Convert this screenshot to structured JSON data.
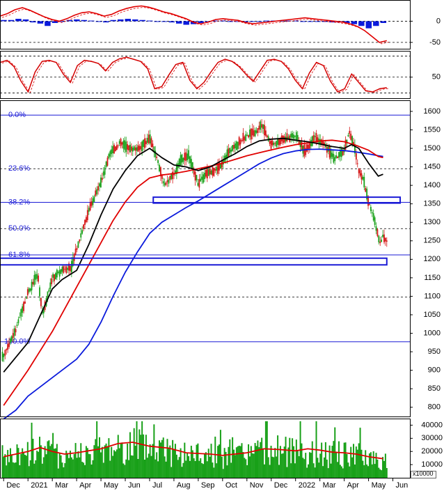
{
  "colors": {
    "price_up": "#18a018",
    "price_down": "#d41414",
    "ma_short": "#000000",
    "ma_mid": "#e00000",
    "ma_long": "#0a1adc",
    "fib": "#1a1ad6",
    "volume": "#18a018",
    "volume_ma": "#e00000",
    "macd_line": "#e00000",
    "macd_hist": "#0a1adc",
    "stoch": "#d40000"
  },
  "chart_data": [
    {
      "type": "line",
      "panel": "macd",
      "y_ticks": [
        "0",
        "-50"
      ],
      "y_tick_values": [
        0,
        -50
      ],
      "ylim": [
        -65,
        50
      ],
      "grid": true,
      "series_line": [
        12,
        18,
        27,
        32,
        26,
        18,
        10,
        4,
        0,
        6,
        14,
        20,
        22,
        18,
        12,
        16,
        24,
        30,
        34,
        36,
        33,
        28,
        22,
        18,
        12,
        6,
        -2,
        -6,
        -2,
        4,
        6,
        4,
        2,
        -3,
        -6,
        -4,
        -2,
        0,
        2,
        4,
        6,
        8,
        6,
        4,
        2,
        0,
        -2,
        -6,
        -12,
        -22,
        -36,
        -50,
        -46
      ],
      "series_hist": [
        2,
        2,
        4,
        3,
        -2,
        -4,
        -8,
        -3,
        -1,
        2,
        3,
        2,
        1,
        -1,
        -2,
        2,
        3,
        4,
        3,
        2,
        1,
        0,
        -1,
        -2,
        -4,
        -6,
        -5,
        -3,
        -1,
        1,
        1,
        0,
        -1,
        -2,
        -1,
        0,
        1,
        1,
        1,
        1,
        1,
        0,
        -1,
        -1,
        -1,
        -2,
        -2,
        -3,
        -5,
        -8,
        -12,
        -8,
        -3
      ]
    },
    {
      "type": "line",
      "panel": "stochastic",
      "y_ticks": [
        "50"
      ],
      "y_tick_values": [
        50
      ],
      "ylim": [
        10,
        100
      ],
      "grid": true,
      "series": [
        78,
        82,
        70,
        42,
        22,
        60,
        80,
        82,
        78,
        56,
        40,
        72,
        82,
        80,
        76,
        62,
        78,
        85,
        88,
        84,
        80,
        66,
        28,
        32,
        54,
        74,
        78,
        44,
        28,
        40,
        60,
        78,
        84,
        80,
        70,
        55,
        42,
        62,
        82,
        84,
        80,
        66,
        44,
        28,
        58,
        78,
        72,
        42,
        22,
        28,
        56,
        40,
        24,
        22,
        28,
        30
      ]
    },
    {
      "type": "candlestick",
      "panel": "price",
      "x_ticks": [
        "Dec",
        "2021",
        "Mar",
        "Apr",
        "May",
        "Jun",
        "Jul",
        "Aug",
        "Sep",
        "Oct",
        "Nov",
        "Dec",
        "2022",
        "Mar",
        "Apr",
        "May",
        "Jun"
      ],
      "x_tick_values": [
        0,
        1,
        2,
        3,
        4,
        5,
        6,
        7,
        8,
        9,
        10,
        11,
        12,
        13,
        14,
        15,
        16
      ],
      "xlim": [
        -0.15,
        16.7
      ],
      "y_ticks": [
        "1600",
        "1550",
        "1500",
        "1450",
        "1400",
        "1350",
        "1300",
        "1250",
        "1200",
        "1150",
        "1100",
        "1050",
        "1000",
        "950",
        "900",
        "850",
        "800"
      ],
      "y_tick_values": [
        1600,
        1550,
        1500,
        1450,
        1400,
        1350,
        1300,
        1250,
        1200,
        1150,
        1100,
        1050,
        1000,
        950,
        900,
        850,
        800
      ],
      "ylim": [
        775,
        1630
      ],
      "fib_levels": [
        {
          "label": "0.0%",
          "value": 1590
        },
        {
          "label": "23.6%",
          "value": 1445
        },
        {
          "label": "38.2%",
          "value": 1354
        },
        {
          "label": "50.0%",
          "value": 1283
        },
        {
          "label": "61.8%",
          "value": 1212
        },
        {
          "label": "100.0%",
          "value": 977
        }
      ],
      "extra_dashed_levels": [
        1098
      ],
      "zones": [
        {
          "x_from": 6.15,
          "x_to": 16.3,
          "low": 1352,
          "high": 1368
        },
        {
          "x_from": -0.15,
          "x_to": 15.75,
          "low": 1185,
          "high": 1203
        }
      ],
      "close_path": [
        [
          0,
          940
        ],
        [
          0.5,
          1010
        ],
        [
          1,
          1110
        ],
        [
          1.4,
          1160
        ],
        [
          1.6,
          1050
        ],
        [
          2,
          1150
        ],
        [
          2.4,
          1170
        ],
        [
          2.8,
          1180
        ],
        [
          3,
          1230
        ],
        [
          3.5,
          1330
        ],
        [
          4,
          1410
        ],
        [
          4.4,
          1490
        ],
        [
          4.8,
          1515
        ],
        [
          5.2,
          1500
        ],
        [
          5.6,
          1500
        ],
        [
          6,
          1530
        ],
        [
          6.3,
          1475
        ],
        [
          6.6,
          1400
        ],
        [
          7,
          1430
        ],
        [
          7.3,
          1470
        ],
        [
          7.6,
          1480
        ],
        [
          8,
          1405
        ],
        [
          8.3,
          1430
        ],
        [
          8.8,
          1445
        ],
        [
          9.2,
          1485
        ],
        [
          9.6,
          1510
        ],
        [
          10,
          1535
        ],
        [
          10.4,
          1545
        ],
        [
          10.6,
          1565
        ],
        [
          11,
          1510
        ],
        [
          11.5,
          1525
        ],
        [
          12,
          1535
        ],
        [
          12.4,
          1490
        ],
        [
          12.8,
          1530
        ],
        [
          13.2,
          1510
        ],
        [
          13.6,
          1470
        ],
        [
          14,
          1495
        ],
        [
          14.2,
          1545
        ],
        [
          14.4,
          1510
        ],
        [
          14.6,
          1440
        ],
        [
          14.8,
          1415
        ],
        [
          15,
          1355
        ],
        [
          15.15,
          1325
        ],
        [
          15.3,
          1290
        ],
        [
          15.45,
          1245
        ],
        [
          15.6,
          1262
        ],
        [
          15.75,
          1250
        ]
      ],
      "ma_short_path": [
        [
          0,
          895
        ],
        [
          1,
          975
        ],
        [
          2,
          1120
        ],
        [
          2.4,
          1145
        ],
        [
          3,
          1170
        ],
        [
          3.5,
          1240
        ],
        [
          4,
          1320
        ],
        [
          4.5,
          1390
        ],
        [
          5,
          1440
        ],
        [
          5.5,
          1480
        ],
        [
          6,
          1500
        ],
        [
          6.5,
          1475
        ],
        [
          7,
          1455
        ],
        [
          7.5,
          1450
        ],
        [
          8,
          1440
        ],
        [
          8.5,
          1450
        ],
        [
          9,
          1468
        ],
        [
          9.5,
          1485
        ],
        [
          10,
          1505
        ],
        [
          10.5,
          1520
        ],
        [
          11,
          1525
        ],
        [
          11.5,
          1527
        ],
        [
          12,
          1522
        ],
        [
          12.5,
          1518
        ],
        [
          13,
          1512
        ],
        [
          13.5,
          1505
        ],
        [
          14,
          1500
        ],
        [
          14.3,
          1510
        ],
        [
          14.6,
          1500
        ],
        [
          15,
          1460
        ],
        [
          15.4,
          1425
        ],
        [
          15.6,
          1430
        ]
      ],
      "ma_mid_path": [
        [
          0,
          805
        ],
        [
          1,
          900
        ],
        [
          2,
          1005
        ],
        [
          3,
          1125
        ],
        [
          3.5,
          1185
        ],
        [
          4,
          1245
        ],
        [
          4.5,
          1305
        ],
        [
          5,
          1355
        ],
        [
          5.5,
          1395
        ],
        [
          6,
          1420
        ],
        [
          6.5,
          1428
        ],
        [
          7,
          1432
        ],
        [
          7.5,
          1438
        ],
        [
          8,
          1445
        ],
        [
          8.5,
          1452
        ],
        [
          9,
          1460
        ],
        [
          9.5,
          1470
        ],
        [
          10,
          1480
        ],
        [
          10.5,
          1488
        ],
        [
          11,
          1496
        ],
        [
          11.5,
          1503
        ],
        [
          12,
          1510
        ],
        [
          12.5,
          1515
        ],
        [
          13,
          1520
        ],
        [
          13.5,
          1522
        ],
        [
          14,
          1518
        ],
        [
          14.5,
          1508
        ],
        [
          15,
          1495
        ],
        [
          15.4,
          1478
        ],
        [
          15.6,
          1475
        ]
      ],
      "ma_long_path": [
        [
          0,
          768
        ],
        [
          0.5,
          792
        ],
        [
          1,
          830
        ],
        [
          2,
          880
        ],
        [
          3,
          930
        ],
        [
          3.5,
          970
        ],
        [
          4,
          1030
        ],
        [
          4.5,
          1100
        ],
        [
          5,
          1165
        ],
        [
          5.5,
          1220
        ],
        [
          6,
          1270
        ],
        [
          6.5,
          1300
        ],
        [
          7,
          1320
        ],
        [
          7.5,
          1340
        ],
        [
          8,
          1358
        ],
        [
          8.5,
          1378
        ],
        [
          9,
          1398
        ],
        [
          9.5,
          1418
        ],
        [
          10,
          1438
        ],
        [
          10.5,
          1458
        ],
        [
          11,
          1474
        ],
        [
          11.5,
          1486
        ],
        [
          12,
          1493
        ],
        [
          12.5,
          1497
        ],
        [
          13,
          1498
        ],
        [
          13.5,
          1496
        ],
        [
          14,
          1494
        ],
        [
          14.5,
          1490
        ],
        [
          15,
          1485
        ],
        [
          15.4,
          1480
        ],
        [
          15.6,
          1478
        ]
      ]
    },
    {
      "type": "bar",
      "panel": "volume",
      "y_ticks": [
        "40000",
        "30000",
        "20000",
        "10000"
      ],
      "y_tick_values": [
        40000,
        30000,
        20000,
        10000
      ],
      "ylim": [
        0,
        45000
      ],
      "unit_label": "x10000",
      "volume_ma_path": [
        [
          0,
          16000
        ],
        [
          1,
          20000
        ],
        [
          1.5,
          23000
        ],
        [
          2,
          20000
        ],
        [
          2.5,
          18000
        ],
        [
          3,
          19000
        ],
        [
          4,
          22000
        ],
        [
          4.7,
          26000
        ],
        [
          5.3,
          27000
        ],
        [
          6,
          24000
        ],
        [
          6.8,
          22500
        ],
        [
          7.5,
          19000
        ],
        [
          8,
          18500
        ],
        [
          8.5,
          18000
        ],
        [
          9,
          17000
        ],
        [
          9.5,
          18000
        ],
        [
          10,
          19000
        ],
        [
          10.7,
          22000
        ],
        [
          11.3,
          21500
        ],
        [
          12,
          20500
        ],
        [
          12.5,
          22000
        ],
        [
          13,
          21000
        ],
        [
          13.5,
          19500
        ],
        [
          14,
          19000
        ],
        [
          14.5,
          18000
        ],
        [
          15,
          16000
        ],
        [
          15.4,
          15000
        ],
        [
          15.6,
          14500
        ]
      ]
    }
  ]
}
